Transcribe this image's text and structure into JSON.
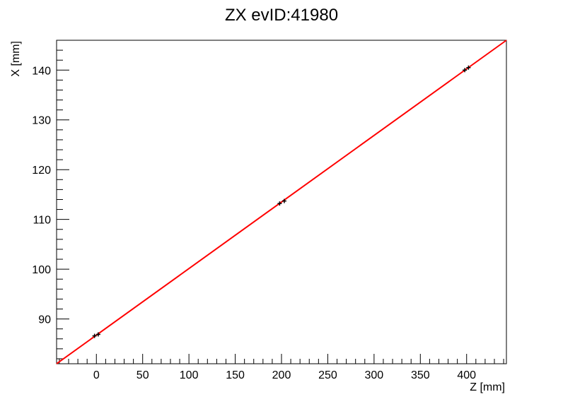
{
  "chart_data": {
    "type": "scatter",
    "title": "ZX evID:41980",
    "xlabel": "Z [mm]",
    "ylabel": "X [mm]",
    "xlim": [
      -43,
      443
    ],
    "ylim": [
      81,
      146
    ],
    "x_ticks": [
      0,
      50,
      100,
      150,
      200,
      250,
      300,
      350,
      400
    ],
    "y_ticks": [
      90,
      100,
      110,
      120,
      130,
      140
    ],
    "x_minor_step": 10,
    "y_minor_step": 2,
    "grid": false,
    "series": [
      {
        "points": [
          {
            "x": -2,
            "y": 86.6
          },
          {
            "x": 2,
            "y": 86.9
          },
          {
            "x": 198,
            "y": 113.2
          },
          {
            "x": 203,
            "y": 113.7
          },
          {
            "x": 398,
            "y": 140.0
          },
          {
            "x": 402,
            "y": 140.5
          }
        ],
        "color": "#000000"
      }
    ],
    "fit_line": {
      "color": "#ff0000",
      "x0": -43,
      "y0": 81.0,
      "x1": 443,
      "y1": 146.0
    }
  }
}
